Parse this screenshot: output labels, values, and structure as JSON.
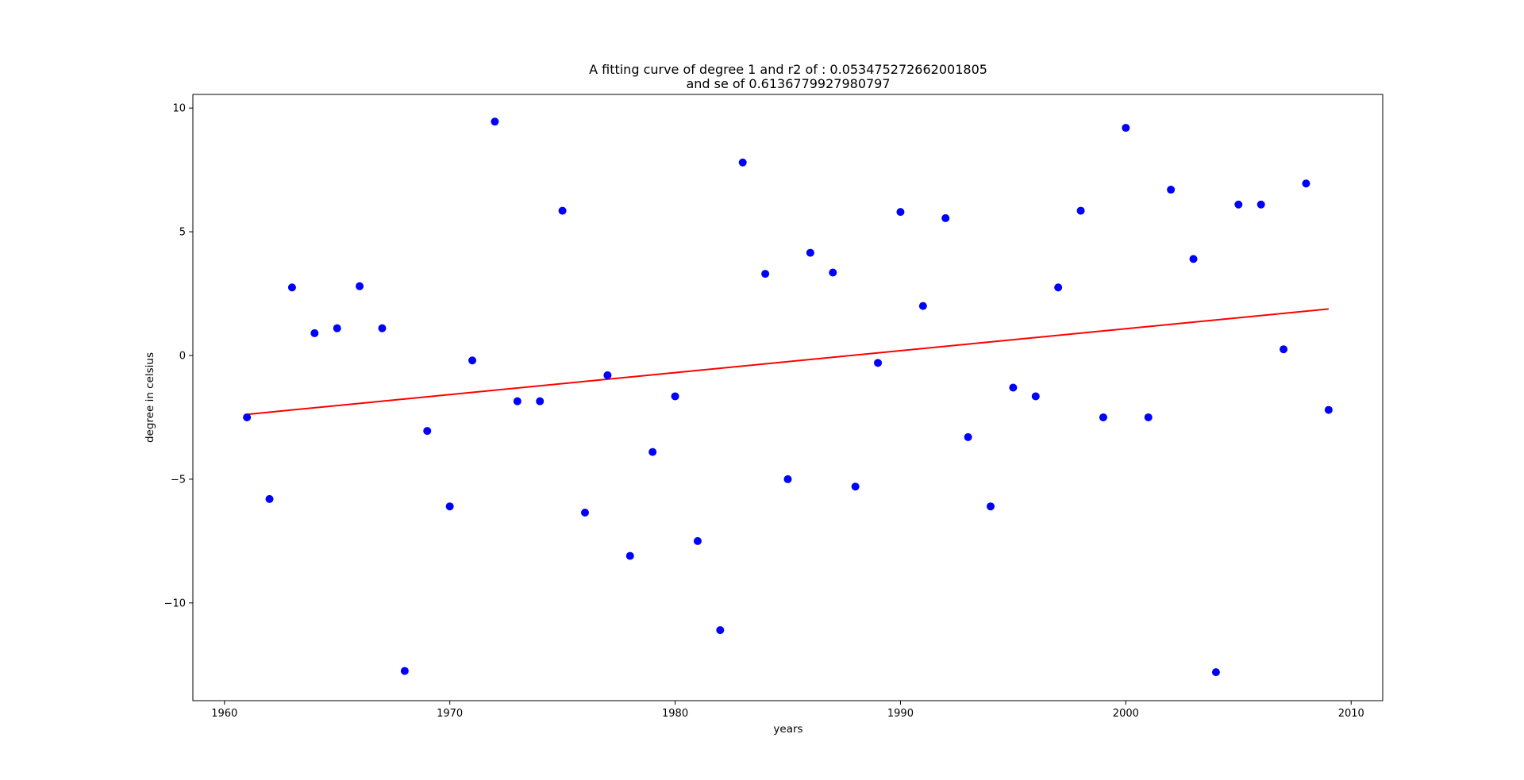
{
  "chart_data": {
    "type": "scatter",
    "title": "A fitting curve of degree 1  and r2 of : 0.053475272662001805",
    "subtitle": "and se of 0.6136779927980797",
    "xlabel": "years",
    "ylabel": "degree in celsius",
    "xlim": [
      1958.6,
      2011.4
    ],
    "ylim": [
      -13.95,
      10.55
    ],
    "xticks": [
      1960,
      1970,
      1980,
      1990,
      2000,
      2010
    ],
    "yticks": [
      10,
      5,
      0,
      -5,
      -10
    ],
    "ytick_labels": [
      "10",
      "5",
      "0",
      "−5",
      "−10"
    ],
    "grid": false,
    "colors": {
      "points": "#0000ff",
      "fit": "#ff0000"
    },
    "series": [
      {
        "kind": "scatter",
        "x": [
          1961,
          1962,
          1963,
          1964,
          1965,
          1966,
          1967,
          1968,
          1969,
          1970,
          1971,
          1972,
          1973,
          1974,
          1975,
          1976,
          1977,
          1978,
          1979,
          1980,
          1981,
          1982,
          1983,
          1984,
          1985,
          1986,
          1987,
          1988,
          1989,
          1990,
          1991,
          1992,
          1993,
          1994,
          1995,
          1996,
          1997,
          1998,
          1999,
          2000,
          2001,
          2002,
          2003,
          2004,
          2005,
          2006,
          2007,
          2008,
          2009
        ],
        "y": [
          -2.5,
          -5.8,
          2.75,
          0.9,
          1.1,
          2.8,
          1.1,
          -12.75,
          -3.05,
          -6.1,
          -0.2,
          9.45,
          -1.85,
          -1.85,
          5.85,
          -6.35,
          -0.8,
          -8.1,
          -3.9,
          -1.65,
          -7.5,
          -11.1,
          7.8,
          3.3,
          -5.0,
          4.15,
          3.35,
          -5.3,
          -0.3,
          5.8,
          2.0,
          5.55,
          -3.3,
          -6.1,
          -1.3,
          -1.65,
          2.75,
          5.85,
          -2.5,
          9.2,
          -2.5,
          6.7,
          3.9,
          -12.8,
          6.1,
          6.1,
          0.25,
          6.95,
          -2.2
        ]
      },
      {
        "kind": "line",
        "x": [
          1961,
          2009
        ],
        "y": [
          -2.38,
          1.88
        ]
      }
    ]
  }
}
